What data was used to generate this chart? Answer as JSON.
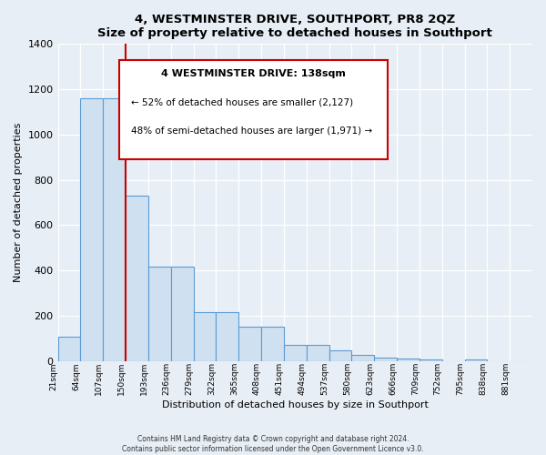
{
  "title": "4, WESTMINSTER DRIVE, SOUTHPORT, PR8 2QZ",
  "subtitle": "Size of property relative to detached houses in Southport",
  "xlabel": "Distribution of detached houses by size in Southport",
  "ylabel": "Number of detached properties",
  "bar_labels": [
    "21sqm",
    "64sqm",
    "107sqm",
    "150sqm",
    "193sqm",
    "236sqm",
    "279sqm",
    "322sqm",
    "365sqm",
    "408sqm",
    "451sqm",
    "494sqm",
    "537sqm",
    "580sqm",
    "623sqm",
    "666sqm",
    "709sqm",
    "752sqm",
    "795sqm",
    "838sqm",
    "881sqm"
  ],
  "bar_heights": [
    107,
    1160,
    1160,
    730,
    415,
    415,
    215,
    215,
    150,
    150,
    70,
    70,
    48,
    28,
    15,
    10,
    8,
    0,
    8,
    0,
    0
  ],
  "bar_color": "#cfe0f0",
  "bar_edge_color": "#5b9bd5",
  "annotation_box_color": "#ffffff",
  "annotation_border_color": "#cc0000",
  "marker_line_color": "#cc0000",
  "marker_bar_index": 3,
  "annotation_title": "4 WESTMINSTER DRIVE: 138sqm",
  "annotation_line1": "← 52% of detached houses are smaller (2,127)",
  "annotation_line2": "48% of semi-detached houses are larger (1,971) →",
  "ylim": [
    0,
    1400
  ],
  "yticks": [
    0,
    200,
    400,
    600,
    800,
    1000,
    1200,
    1400
  ],
  "footer_line1": "Contains HM Land Registry data © Crown copyright and database right 2024.",
  "footer_line2": "Contains public sector information licensed under the Open Government Licence v3.0.",
  "background_color": "#e8eef5",
  "plot_bg_color": "#e8eef5"
}
